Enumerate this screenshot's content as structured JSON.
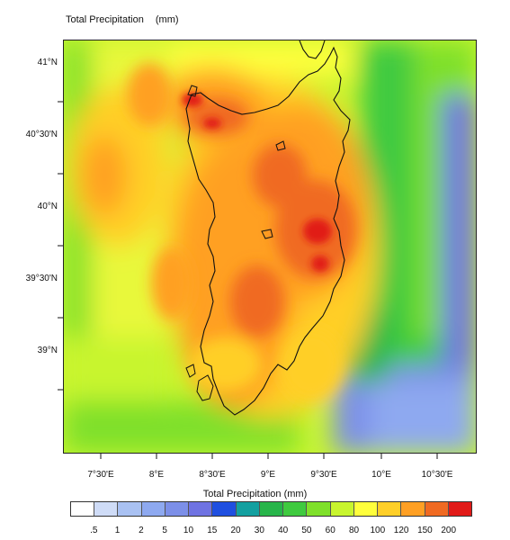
{
  "title": {
    "text": "Total Precipitation",
    "unit": "(mm)"
  },
  "colorbar": {
    "title": "Total Precipitation  (mm)",
    "labels": [
      ".5",
      "1",
      "2",
      "5",
      "10",
      "15",
      "20",
      "30",
      "40",
      "50",
      "60",
      "80",
      "100",
      "120",
      "150",
      "200"
    ],
    "colors": [
      "#ffffff",
      "#cfdcf7",
      "#a9c1f2",
      "#8ea9f0",
      "#7c8fe8",
      "#6f73e2",
      "#1f4fe0",
      "#13a0a0",
      "#27b54a",
      "#3fca3f",
      "#7fe02a",
      "#c8f52e",
      "#ffff3c",
      "#ffcf28",
      "#ffa024",
      "#f06a22",
      "#e11a18"
    ]
  },
  "axes": {
    "y_ticks": [
      "41°N",
      "40°30'N",
      "40°N",
      "39°30'N",
      "39°N"
    ],
    "x_ticks": [
      "7°30'E",
      "8°E",
      "8°30'E",
      "9°E",
      "9°30'E",
      "10°E",
      "10°30'E"
    ]
  }
}
